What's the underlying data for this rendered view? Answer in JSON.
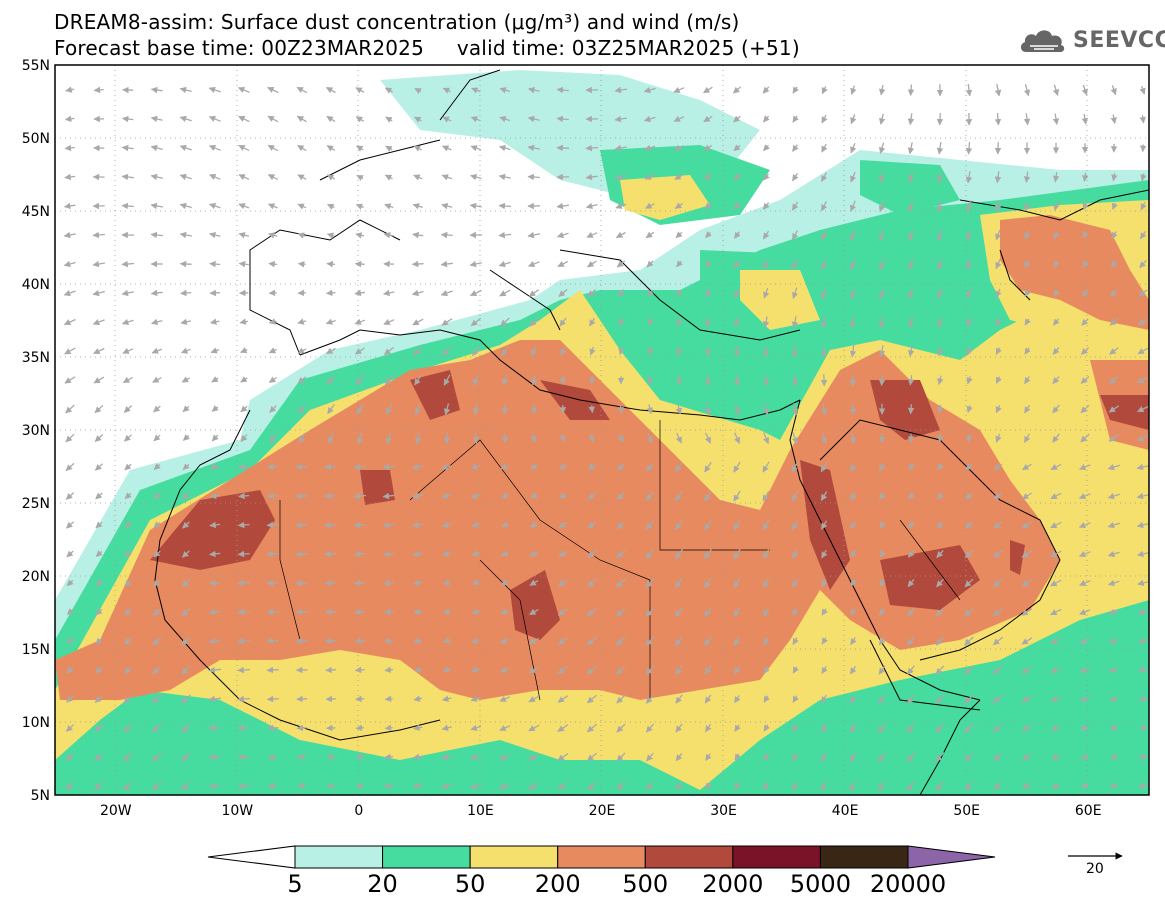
{
  "title": {
    "line1": "DREAM8-assim: Surface dust concentration (μg/m³) and wind (m/s)",
    "line2": "Forecast base time: 00Z23MAR2025     valid time: 03Z25MAR2025 (+51)"
  },
  "logo": {
    "text": "SEEVCCC",
    "icon": "cloud-icon"
  },
  "axes": {
    "lat_labels": [
      "55N",
      "50N",
      "45N",
      "40N",
      "35N",
      "30N",
      "25N",
      "20N",
      "15N",
      "10N",
      "5N"
    ],
    "lat_values": [
      55,
      50,
      45,
      40,
      35,
      30,
      25,
      20,
      15,
      10,
      5
    ],
    "lon_labels": [
      "20W",
      "10W",
      "0",
      "10E",
      "20E",
      "30E",
      "40E",
      "50E",
      "60E"
    ],
    "lon_values": [
      -20,
      -10,
      0,
      10,
      20,
      30,
      40,
      50,
      60
    ],
    "lon_range": [
      -25,
      65
    ],
    "lat_range": [
      5,
      55
    ],
    "gridlines": "dotted"
  },
  "colorbar": {
    "labels": [
      "5",
      "20",
      "50",
      "200",
      "500",
      "2000",
      "5000",
      "20000"
    ],
    "colors": [
      "#b9f0e6",
      "#46dca0",
      "#f5e06e",
      "#e88a60",
      "#b14a3c",
      "#7a1228",
      "#3a2614",
      "#8c64a8"
    ],
    "units": "μg/m³"
  },
  "wind_reference": {
    "value": "20",
    "unit": "m/s"
  },
  "map_colors": {
    "land_white": "#ffffff",
    "arrow": "#a9a9a9",
    "border": "#000000"
  }
}
